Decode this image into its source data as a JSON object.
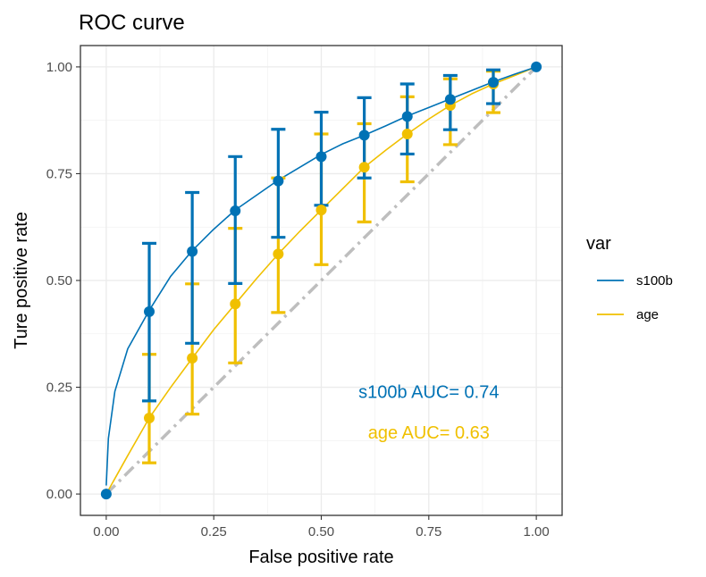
{
  "chart_data": {
    "type": "line",
    "title": "ROC curve",
    "xlabel": "False positive rate",
    "ylabel": "Ture positive rate",
    "xlim": [
      -0.06,
      1.06
    ],
    "ylim": [
      -0.05,
      1.05
    ],
    "x_ticks": [
      0,
      0.25,
      0.5,
      0.75,
      1
    ],
    "x_tick_labels": [
      "0.00",
      "0.25",
      "0.50",
      "0.75",
      "1.00"
    ],
    "y_ticks": [
      0,
      0.25,
      0.5,
      0.75,
      1
    ],
    "y_tick_labels": [
      "0.00",
      "0.25",
      "0.50",
      "0.75",
      "1.00"
    ],
    "grid": true,
    "legend": {
      "title": "var",
      "placement": "right"
    },
    "reference_line": {
      "x": [
        0,
        1
      ],
      "y": [
        0,
        1
      ],
      "color": "#bebebe",
      "style": "dash-dot"
    },
    "series": [
      {
        "name": "s100b",
        "color": "#0072B5",
        "curve_x": [
          0,
          0.005,
          0.02,
          0.05,
          0.1,
          0.15,
          0.2,
          0.25,
          0.3,
          0.35,
          0.4,
          0.45,
          0.5,
          0.55,
          0.6,
          0.65,
          0.7,
          0.75,
          0.8,
          0.85,
          0.9,
          0.95,
          1.0
        ],
        "curve_y": [
          0.02,
          0.13,
          0.24,
          0.34,
          0.43,
          0.51,
          0.57,
          0.62,
          0.665,
          0.7,
          0.735,
          0.765,
          0.795,
          0.82,
          0.84,
          0.862,
          0.885,
          0.905,
          0.925,
          0.945,
          0.965,
          0.983,
          1.0
        ],
        "points": [
          {
            "x": 0.0,
            "y": 0.0
          },
          {
            "x": 0.1,
            "y": 0.427,
            "ymin": 0.218,
            "ymax": 0.587
          },
          {
            "x": 0.2,
            "y": 0.568,
            "ymin": 0.353,
            "ymax": 0.706
          },
          {
            "x": 0.3,
            "y": 0.663,
            "ymin": 0.493,
            "ymax": 0.79
          },
          {
            "x": 0.4,
            "y": 0.733,
            "ymin": 0.601,
            "ymax": 0.854
          },
          {
            "x": 0.5,
            "y": 0.79,
            "ymin": 0.676,
            "ymax": 0.894
          },
          {
            "x": 0.6,
            "y": 0.84,
            "ymin": 0.74,
            "ymax": 0.928
          },
          {
            "x": 0.7,
            "y": 0.884,
            "ymin": 0.796,
            "ymax": 0.96
          },
          {
            "x": 0.8,
            "y": 0.924,
            "ymin": 0.853,
            "ymax": 0.98
          },
          {
            "x": 0.9,
            "y": 0.964,
            "ymin": 0.914,
            "ymax": 0.993
          },
          {
            "x": 1.0,
            "y": 1.0
          }
        ]
      },
      {
        "name": "age",
        "color": "#F0C000",
        "curve_x": [
          0,
          0.05,
          0.1,
          0.15,
          0.2,
          0.25,
          0.3,
          0.35,
          0.4,
          0.45,
          0.5,
          0.55,
          0.6,
          0.65,
          0.7,
          0.75,
          0.8,
          0.85,
          0.9,
          0.95,
          1.0
        ],
        "curve_y": [
          0.0,
          0.09,
          0.178,
          0.25,
          0.318,
          0.385,
          0.445,
          0.505,
          0.562,
          0.615,
          0.665,
          0.715,
          0.765,
          0.805,
          0.843,
          0.878,
          0.91,
          0.937,
          0.96,
          0.98,
          1.0
        ],
        "points": [
          {
            "x": 0.1,
            "y": 0.178,
            "ymin": 0.073,
            "ymax": 0.327
          },
          {
            "x": 0.2,
            "y": 0.318,
            "ymin": 0.187,
            "ymax": 0.492
          },
          {
            "x": 0.3,
            "y": 0.445,
            "ymin": 0.307,
            "ymax": 0.622
          },
          {
            "x": 0.4,
            "y": 0.562,
            "ymin": 0.425,
            "ymax": 0.74
          },
          {
            "x": 0.5,
            "y": 0.665,
            "ymin": 0.537,
            "ymax": 0.843
          },
          {
            "x": 0.6,
            "y": 0.765,
            "ymin": 0.637,
            "ymax": 0.867
          },
          {
            "x": 0.7,
            "y": 0.843,
            "ymin": 0.731,
            "ymax": 0.93
          },
          {
            "x": 0.8,
            "y": 0.91,
            "ymin": 0.818,
            "ymax": 0.972
          },
          {
            "x": 0.9,
            "y": 0.96,
            "ymin": 0.893,
            "ymax": 0.99
          }
        ]
      }
    ],
    "annotations": [
      {
        "text": "s100b AUC= 0.74",
        "x": 0.75,
        "y": 0.24,
        "color": "#0072B5"
      },
      {
        "text": "age AUC= 0.63",
        "x": 0.75,
        "y": 0.145,
        "color": "#F0C000"
      }
    ]
  }
}
